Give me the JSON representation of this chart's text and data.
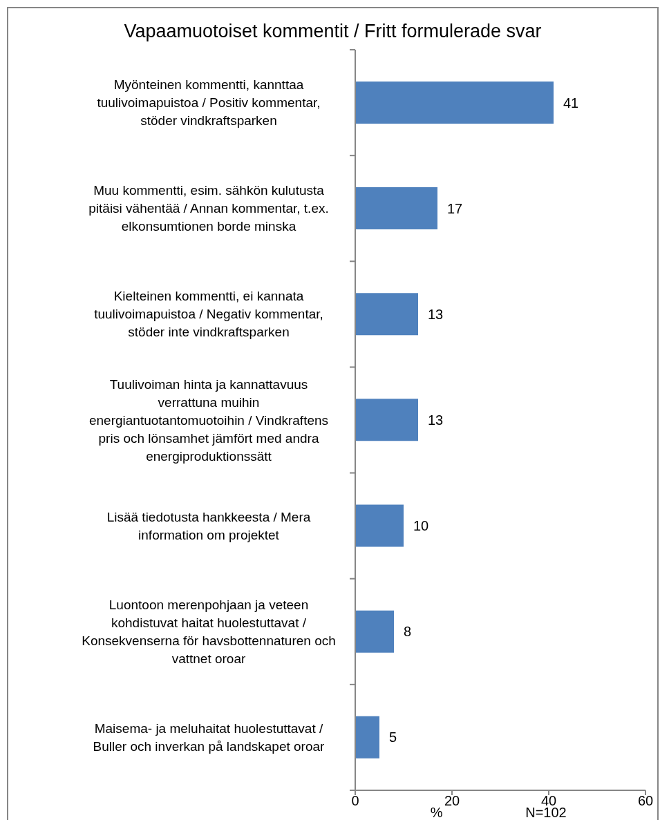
{
  "chart_data": {
    "type": "bar",
    "orientation": "horizontal",
    "title": "Vapaamuotoiset kommentit / Fritt formulerade svar",
    "xlabel": "%",
    "annotations": [
      "N=102"
    ],
    "categories": [
      "Myönteinen kommentti, kannttaa tuulivoimapuistoa / Positiv kommentar, stöder vindkraftsparken",
      "Muu kommentti, esim. sähkön kulutusta pitäisi vähentää / Annan kommentar, t.ex. elkonsumtionen borde minska",
      "Kielteinen kommentti, ei kannata tuulivoimapuistoa / Negativ kommentar, stöder inte vindkraftsparken",
      "Tuulivoiman hinta ja kannattavuus verrattuna muihin energiantuotantomuotoihin / Vindkraftens pris och lönsamhet jämfört med andra energiproduktionssätt",
      "Lisää tiedotusta hankkeesta / Mera information om projektet",
      "Luontoon merenpohjaan ja veteen kohdistuvat haitat huolestuttavat / Konsekvenserna för havsbottennaturen och vattnet oroar",
      "Maisema- ja meluhaitat huolestuttavat / Buller och inverkan på landskapet oroar"
    ],
    "values": [
      41,
      17,
      13,
      13,
      10,
      8,
      5
    ],
    "color": "#4f81bd",
    "xlim": [
      0,
      60
    ],
    "xticks": [
      0,
      20,
      40,
      60
    ],
    "data_labels": true
  }
}
